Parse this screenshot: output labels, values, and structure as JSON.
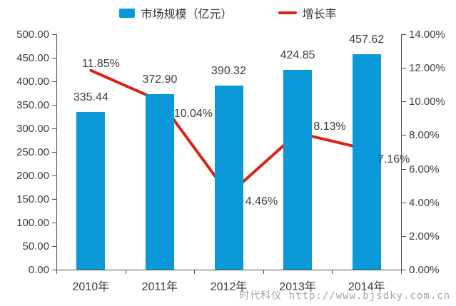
{
  "chart_data": {
    "type": "bar",
    "categories": [
      "2010年",
      "2011年",
      "2012年",
      "2013年",
      "2014年"
    ],
    "series": [
      {
        "name": "市场规模（亿元）",
        "type": "bar",
        "axis": "left",
        "color": "#0998d8",
        "values": [
          335.44,
          372.9,
          390.32,
          424.85,
          457.62
        ],
        "labels": [
          "335.44",
          "372.90",
          "390.32",
          "424.85",
          "457.62"
        ]
      },
      {
        "name": "增长率",
        "type": "line",
        "axis": "right",
        "color": "#de2110",
        "values": [
          11.85,
          10.04,
          4.46,
          8.13,
          7.16
        ],
        "labels": [
          "11.85%",
          "10.04%",
          "4.46%",
          "8.13%",
          "7.16%"
        ]
      }
    ],
    "left_axis": {
      "min": 0,
      "max": 500,
      "step": 50,
      "tick_labels": [
        "500.00",
        "450.00",
        "400.00",
        "350.00",
        "300.00",
        "250.00",
        "200.00",
        "150.00",
        "100.00",
        "50.00",
        "0.00"
      ]
    },
    "right_axis": {
      "min": 0,
      "max": 14,
      "step": 2,
      "tick_labels": [
        "14.00%",
        "12.00%",
        "10.00%",
        "8.00%",
        "6.00%",
        "4.00%",
        "2.00%",
        "0.00%"
      ]
    },
    "legend_position": "top",
    "grid": "off"
  },
  "watermark": "时代科仪 http://www.bjsdky.com.cn",
  "colors": {
    "bar": "#0998d8",
    "line": "#de2110",
    "axis": "#4d4d4d",
    "text": "#3d3d3d",
    "watermark": "#a6a6a6"
  }
}
